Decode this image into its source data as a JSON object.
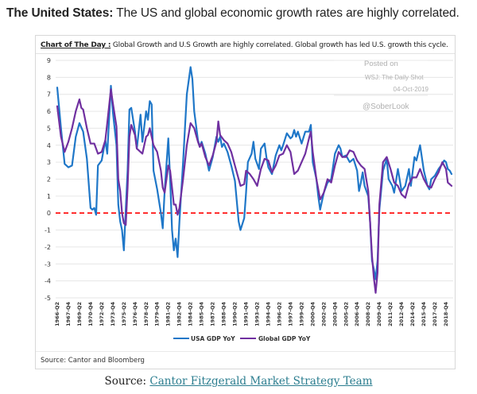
{
  "headline": {
    "bold": "The United States:",
    "text": " The US and global economic growth rates are highly correlated."
  },
  "caption": {
    "label": "Chart of The Day :",
    "text": " Global Growth and U.S Growth are highly correlated. Global growth has led U.S. growth this cycle."
  },
  "watermark": {
    "line1": "Posted on",
    "line2": "WSJ: The Daily Shot",
    "line3": "04-Oct-2019",
    "line4": "@SoberLook"
  },
  "inner_source": "Source: Cantor and Bloomberg",
  "footer": {
    "prefix": "Source: ",
    "link_text": "Cantor Fitzgerald Market Strategy Team"
  },
  "colors": {
    "usa": "#1f77c8",
    "global": "#7030a0",
    "zero_line": "#ff0000",
    "grid": "#e6e6e6"
  },
  "chart_data": {
    "type": "line",
    "title": "Global Growth and U.S Growth are highly correlated. Global growth has led U.S. growth this cycle.",
    "xlabel": "",
    "ylabel": "",
    "ylim": [
      -5,
      9
    ],
    "yticks": [
      9,
      8,
      7,
      6,
      5,
      4,
      3,
      2,
      1,
      0,
      -1,
      -2,
      -3,
      -4,
      -5
    ],
    "xlim": [
      1966.25,
      2019.5
    ],
    "grid": true,
    "legend": "bottom",
    "reference_line": {
      "y": 0,
      "style": "dashed",
      "color": "#ff0000"
    },
    "xtick_labels": [
      "1966-Q2",
      "1967-Q4",
      "1969-Q2",
      "1970-Q4",
      "1972-Q2",
      "1973-Q4",
      "1975-Q2",
      "1976-Q4",
      "1978-Q2",
      "1979-Q4",
      "1981-Q2",
      "1982-Q4",
      "1984-Q2",
      "1985-Q4",
      "1987-Q2",
      "1988-Q4",
      "1990-Q2",
      "1991-Q4",
      "1993-Q2",
      "1994-Q4",
      "1996-Q2",
      "1997-Q4",
      "1999-Q2",
      "2000-Q4",
      "2002-Q2",
      "2003-Q4",
      "2005-Q2",
      "2006-Q4",
      "2008-Q2",
      "2009-Q4",
      "2011-Q2",
      "2012-Q4",
      "2014-Q2",
      "2015-Q4",
      "2017-Q2",
      "2018-Q4"
    ],
    "xtick_values": [
      1966.25,
      1967.75,
      1969.25,
      1970.75,
      1972.25,
      1973.75,
      1975.25,
      1976.75,
      1978.25,
      1979.75,
      1981.25,
      1982.75,
      1984.25,
      1985.75,
      1987.25,
      1988.75,
      1990.25,
      1991.75,
      1993.25,
      1994.75,
      1996.25,
      1997.75,
      1999.25,
      2000.75,
      2002.25,
      2003.75,
      2005.25,
      2006.75,
      2008.25,
      2009.75,
      2011.25,
      2012.75,
      2014.25,
      2015.75,
      2017.25,
      2018.75
    ],
    "series": [
      {
        "name": "USA GDP YoY",
        "color": "#1f77c8",
        "points": [
          [
            1966.25,
            7.4
          ],
          [
            1966.75,
            5.0
          ],
          [
            1967.25,
            2.9
          ],
          [
            1967.75,
            2.7
          ],
          [
            1968.25,
            2.8
          ],
          [
            1968.75,
            4.5
          ],
          [
            1969.25,
            5.3
          ],
          [
            1969.75,
            4.8
          ],
          [
            1970.25,
            3.2
          ],
          [
            1970.75,
            0.3
          ],
          [
            1971.0,
            0.2
          ],
          [
            1971.25,
            0.3
          ],
          [
            1971.5,
            -0.1
          ],
          [
            1971.75,
            2.8
          ],
          [
            1972.25,
            3.1
          ],
          [
            1972.75,
            4.3
          ],
          [
            1973.0,
            3.5
          ],
          [
            1973.5,
            7.5
          ],
          [
            1973.75,
            6.0
          ],
          [
            1974.25,
            4.0
          ],
          [
            1974.5,
            0.5
          ],
          [
            1974.75,
            -0.5
          ],
          [
            1975.0,
            -1.0
          ],
          [
            1975.25,
            -2.2
          ],
          [
            1975.75,
            2.5
          ],
          [
            1976.0,
            6.1
          ],
          [
            1976.25,
            6.2
          ],
          [
            1976.75,
            4.8
          ],
          [
            1977.0,
            3.8
          ],
          [
            1977.5,
            5.8
          ],
          [
            1977.75,
            4.2
          ],
          [
            1978.25,
            6.0
          ],
          [
            1978.5,
            5.5
          ],
          [
            1978.75,
            6.6
          ],
          [
            1979.0,
            6.4
          ],
          [
            1979.25,
            2.5
          ],
          [
            1979.75,
            1.4
          ],
          [
            1980.25,
            0.0
          ],
          [
            1980.5,
            -0.9
          ],
          [
            1980.75,
            1.3
          ],
          [
            1981.25,
            4.4
          ],
          [
            1981.5,
            2.0
          ],
          [
            1981.75,
            -1.0
          ],
          [
            1982.0,
            -2.2
          ],
          [
            1982.25,
            -1.5
          ],
          [
            1982.5,
            -2.6
          ],
          [
            1982.75,
            -0.5
          ],
          [
            1983.25,
            3.0
          ],
          [
            1983.75,
            7.0
          ],
          [
            1984.25,
            8.6
          ],
          [
            1984.5,
            7.9
          ],
          [
            1984.75,
            6.0
          ],
          [
            1985.25,
            4.3
          ],
          [
            1985.5,
            3.9
          ],
          [
            1985.75,
            4.2
          ],
          [
            1986.25,
            3.5
          ],
          [
            1986.75,
            2.5
          ],
          [
            1987.25,
            3.3
          ],
          [
            1987.75,
            4.5
          ],
          [
            1988.0,
            4.2
          ],
          [
            1988.25,
            4.5
          ],
          [
            1988.5,
            3.9
          ],
          [
            1988.75,
            4.1
          ],
          [
            1989.25,
            3.6
          ],
          [
            1989.75,
            2.8
          ],
          [
            1990.25,
            1.9
          ],
          [
            1990.75,
            -0.5
          ],
          [
            1991.0,
            -1.0
          ],
          [
            1991.5,
            -0.3
          ],
          [
            1991.75,
            1.2
          ],
          [
            1992.0,
            3.0
          ],
          [
            1992.5,
            3.5
          ],
          [
            1992.75,
            4.2
          ],
          [
            1993.0,
            3.2
          ],
          [
            1993.5,
            2.6
          ],
          [
            1993.75,
            3.8
          ],
          [
            1994.25,
            4.1
          ],
          [
            1994.5,
            3.3
          ],
          [
            1994.75,
            2.7
          ],
          [
            1995.25,
            2.3
          ],
          [
            1995.75,
            3.4
          ],
          [
            1996.25,
            4.0
          ],
          [
            1996.5,
            3.7
          ],
          [
            1996.75,
            4.0
          ],
          [
            1997.25,
            4.7
          ],
          [
            1997.75,
            4.4
          ],
          [
            1998.0,
            4.5
          ],
          [
            1998.25,
            4.9
          ],
          [
            1998.5,
            4.5
          ],
          [
            1998.75,
            4.8
          ],
          [
            1999.25,
            4.1
          ],
          [
            1999.75,
            4.8
          ],
          [
            2000.25,
            4.8
          ],
          [
            2000.5,
            5.2
          ],
          [
            2000.75,
            3.0
          ],
          [
            2001.25,
            2.0
          ],
          [
            2001.5,
            1.0
          ],
          [
            2001.75,
            0.2
          ],
          [
            2002.25,
            1.2
          ],
          [
            2002.75,
            1.8
          ],
          [
            2003.25,
            2.0
          ],
          [
            2003.75,
            3.5
          ],
          [
            2004.25,
            4.0
          ],
          [
            2004.5,
            3.8
          ],
          [
            2004.75,
            3.3
          ],
          [
            2005.25,
            3.4
          ],
          [
            2005.75,
            3.0
          ],
          [
            2006.25,
            3.2
          ],
          [
            2006.75,
            2.5
          ],
          [
            2007.0,
            1.3
          ],
          [
            2007.25,
            1.8
          ],
          [
            2007.5,
            2.4
          ],
          [
            2007.75,
            1.6
          ],
          [
            2008.25,
            1.0
          ],
          [
            2008.5,
            -0.5
          ],
          [
            2008.75,
            -2.8
          ],
          [
            2009.0,
            -3.3
          ],
          [
            2009.25,
            -3.9
          ],
          [
            2009.5,
            -2.8
          ],
          [
            2009.75,
            0.2
          ],
          [
            2010.25,
            2.5
          ],
          [
            2010.75,
            3.2
          ],
          [
            2011.0,
            2.0
          ],
          [
            2011.5,
            1.6
          ],
          [
            2011.75,
            1.2
          ],
          [
            2012.25,
            2.6
          ],
          [
            2012.75,
            1.3
          ],
          [
            2013.25,
            1.6
          ],
          [
            2013.75,
            2.6
          ],
          [
            2014.0,
            1.6
          ],
          [
            2014.5,
            3.3
          ],
          [
            2014.75,
            3.1
          ],
          [
            2015.25,
            4.0
          ],
          [
            2015.75,
            2.5
          ],
          [
            2016.25,
            1.6
          ],
          [
            2016.5,
            1.4
          ],
          [
            2016.75,
            2.0
          ],
          [
            2017.25,
            2.2
          ],
          [
            2017.75,
            2.6
          ],
          [
            2018.25,
            2.9
          ],
          [
            2018.5,
            3.1
          ],
          [
            2018.75,
            3.0
          ],
          [
            2019.0,
            2.6
          ],
          [
            2019.25,
            2.5
          ],
          [
            2019.5,
            2.3
          ]
        ]
      },
      {
        "name": "Global GDP YoY",
        "color": "#7030a0",
        "points": [
          [
            1966.25,
            6.3
          ],
          [
            1966.75,
            4.5
          ],
          [
            1967.25,
            3.6
          ],
          [
            1967.75,
            4.2
          ],
          [
            1968.25,
            5.0
          ],
          [
            1968.75,
            6.0
          ],
          [
            1969.25,
            6.7
          ],
          [
            1969.5,
            6.2
          ],
          [
            1969.75,
            6.1
          ],
          [
            1970.25,
            5.0
          ],
          [
            1970.75,
            4.1
          ],
          [
            1971.25,
            4.1
          ],
          [
            1971.5,
            3.8
          ],
          [
            1971.75,
            3.5
          ],
          [
            1972.25,
            3.6
          ],
          [
            1972.75,
            4.3
          ],
          [
            1973.0,
            5.3
          ],
          [
            1973.5,
            7.3
          ],
          [
            1973.75,
            6.5
          ],
          [
            1974.25,
            5.1
          ],
          [
            1974.5,
            2.0
          ],
          [
            1974.75,
            1.3
          ],
          [
            1975.0,
            0.0
          ],
          [
            1975.25,
            -0.6
          ],
          [
            1975.5,
            -0.7
          ],
          [
            1975.75,
            1.5
          ],
          [
            1976.0,
            4.5
          ],
          [
            1976.25,
            5.2
          ],
          [
            1976.75,
            4.6
          ],
          [
            1977.0,
            3.8
          ],
          [
            1977.25,
            3.7
          ],
          [
            1977.75,
            3.5
          ],
          [
            1978.25,
            4.5
          ],
          [
            1978.5,
            4.6
          ],
          [
            1978.75,
            5.0
          ],
          [
            1979.25,
            4.0
          ],
          [
            1979.75,
            3.6
          ],
          [
            1980.25,
            2.5
          ],
          [
            1980.5,
            1.5
          ],
          [
            1980.75,
            1.2
          ],
          [
            1981.25,
            2.8
          ],
          [
            1981.5,
            2.5
          ],
          [
            1981.75,
            1.5
          ],
          [
            1982.0,
            0.5
          ],
          [
            1982.25,
            0.5
          ],
          [
            1982.5,
            -0.1
          ],
          [
            1982.75,
            0.3
          ],
          [
            1983.25,
            2.0
          ],
          [
            1983.75,
            4.0
          ],
          [
            1984.25,
            5.3
          ],
          [
            1984.75,
            5.0
          ],
          [
            1985.25,
            4.2
          ],
          [
            1985.5,
            3.9
          ],
          [
            1985.75,
            4.1
          ],
          [
            1986.25,
            3.3
          ],
          [
            1986.75,
            2.8
          ],
          [
            1987.25,
            3.4
          ],
          [
            1987.75,
            4.2
          ],
          [
            1988.0,
            5.4
          ],
          [
            1988.25,
            4.6
          ],
          [
            1988.75,
            4.3
          ],
          [
            1989.25,
            4.1
          ],
          [
            1989.75,
            3.6
          ],
          [
            1990.25,
            2.8
          ],
          [
            1990.75,
            2.0
          ],
          [
            1991.0,
            1.6
          ],
          [
            1991.5,
            1.7
          ],
          [
            1991.75,
            2.5
          ],
          [
            1992.25,
            2.3
          ],
          [
            1992.75,
            2.0
          ],
          [
            1993.25,
            1.6
          ],
          [
            1993.75,
            2.6
          ],
          [
            1994.25,
            3.2
          ],
          [
            1994.75,
            3.1
          ],
          [
            1995.25,
            2.4
          ],
          [
            1995.75,
            2.8
          ],
          [
            1996.25,
            3.4
          ],
          [
            1996.75,
            3.5
          ],
          [
            1997.25,
            4.0
          ],
          [
            1997.75,
            3.6
          ],
          [
            1998.25,
            2.3
          ],
          [
            1998.75,
            2.5
          ],
          [
            1999.25,
            3.0
          ],
          [
            1999.75,
            3.5
          ],
          [
            2000.25,
            4.4
          ],
          [
            2000.5,
            4.8
          ],
          [
            2000.75,
            3.6
          ],
          [
            2001.25,
            2.0
          ],
          [
            2001.75,
            0.8
          ],
          [
            2002.25,
            1.2
          ],
          [
            2002.75,
            2.0
          ],
          [
            2003.25,
            1.8
          ],
          [
            2003.75,
            2.8
          ],
          [
            2004.25,
            3.6
          ],
          [
            2004.75,
            3.3
          ],
          [
            2005.25,
            3.3
          ],
          [
            2005.75,
            3.7
          ],
          [
            2006.25,
            3.6
          ],
          [
            2006.75,
            3.1
          ],
          [
            2007.25,
            2.8
          ],
          [
            2007.75,
            2.6
          ],
          [
            2008.25,
            1.3
          ],
          [
            2008.5,
            -0.5
          ],
          [
            2008.75,
            -2.5
          ],
          [
            2009.0,
            -3.8
          ],
          [
            2009.25,
            -4.7
          ],
          [
            2009.5,
            -3.5
          ],
          [
            2009.75,
            0.5
          ],
          [
            2010.25,
            3.0
          ],
          [
            2010.75,
            3.3
          ],
          [
            2011.25,
            2.6
          ],
          [
            2011.75,
            1.8
          ],
          [
            2012.25,
            1.6
          ],
          [
            2012.75,
            1.1
          ],
          [
            2013.25,
            0.9
          ],
          [
            2013.75,
            1.7
          ],
          [
            2014.25,
            2.1
          ],
          [
            2014.75,
            2.1
          ],
          [
            2015.25,
            2.6
          ],
          [
            2015.75,
            2.0
          ],
          [
            2016.25,
            1.6
          ],
          [
            2016.75,
            1.5
          ],
          [
            2017.25,
            2.0
          ],
          [
            2017.75,
            2.4
          ],
          [
            2018.25,
            3.0
          ],
          [
            2018.75,
            2.6
          ],
          [
            2019.0,
            1.8
          ],
          [
            2019.25,
            1.7
          ],
          [
            2019.5,
            1.6
          ]
        ]
      }
    ]
  }
}
